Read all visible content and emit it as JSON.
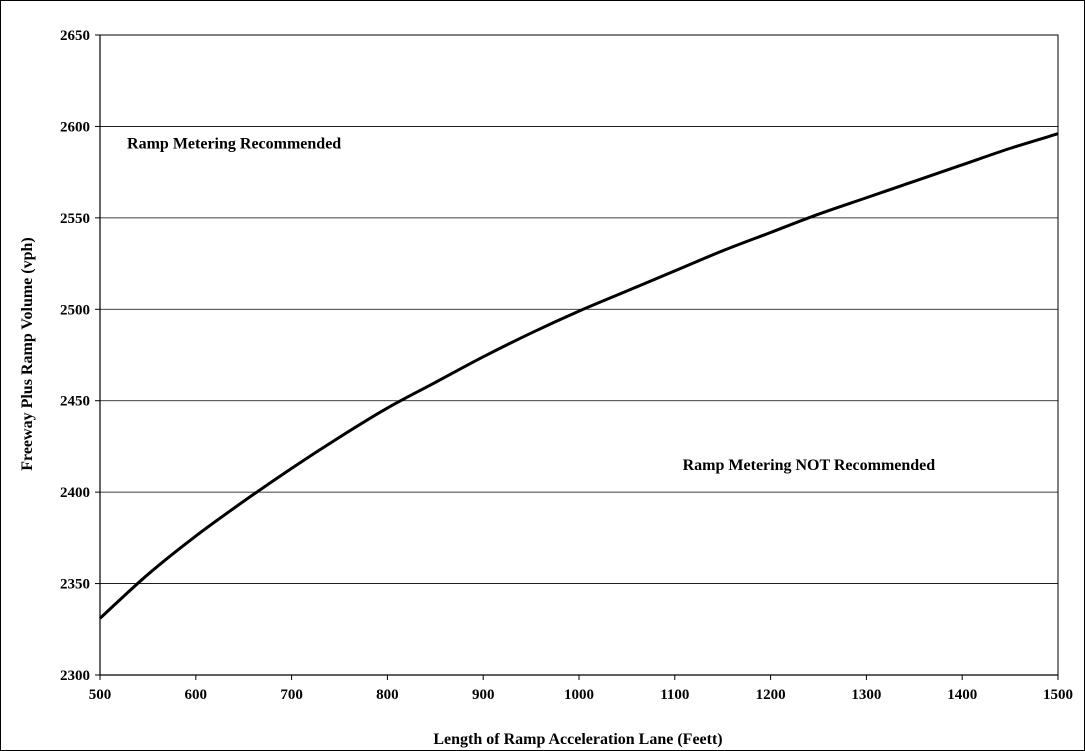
{
  "chart_data": {
    "type": "line",
    "title": "",
    "xlabel": "Length of Ramp Acceleration Lane (Feett)",
    "ylabel": "Freeway Plus Ramp Volume (vph)",
    "xlim": [
      500,
      1500
    ],
    "ylim": [
      2300,
      2650
    ],
    "x_ticks": [
      "500",
      "600",
      "700",
      "800",
      "900",
      "1000",
      "1100",
      "1200",
      "1300",
      "1400",
      "1500"
    ],
    "y_ticks": [
      "2300",
      "2350",
      "2400",
      "2450",
      "2500",
      "2550",
      "2600",
      "2650"
    ],
    "grid": "horizontal",
    "legend": "none",
    "series": [
      {
        "color": "#000000",
        "x": [
          500,
          550,
          600,
          650,
          700,
          750,
          800,
          850,
          900,
          950,
          1000,
          1050,
          1100,
          1150,
          1200,
          1250,
          1300,
          1350,
          1400,
          1450,
          1500
        ],
        "y": [
          2331,
          2355,
          2376,
          2395,
          2413,
          2430,
          2446,
          2460,
          2474,
          2487,
          2499,
          2510,
          2521,
          2532,
          2542,
          2552,
          2561,
          2570,
          2579,
          2588,
          2596
        ]
      }
    ],
    "annotations": [
      {
        "text": "Ramp Metering Recommended",
        "x": 640,
        "y": 2588
      },
      {
        "text": "Ramp Metering NOT Recommended",
        "x": 1240,
        "y": 2412
      }
    ]
  }
}
